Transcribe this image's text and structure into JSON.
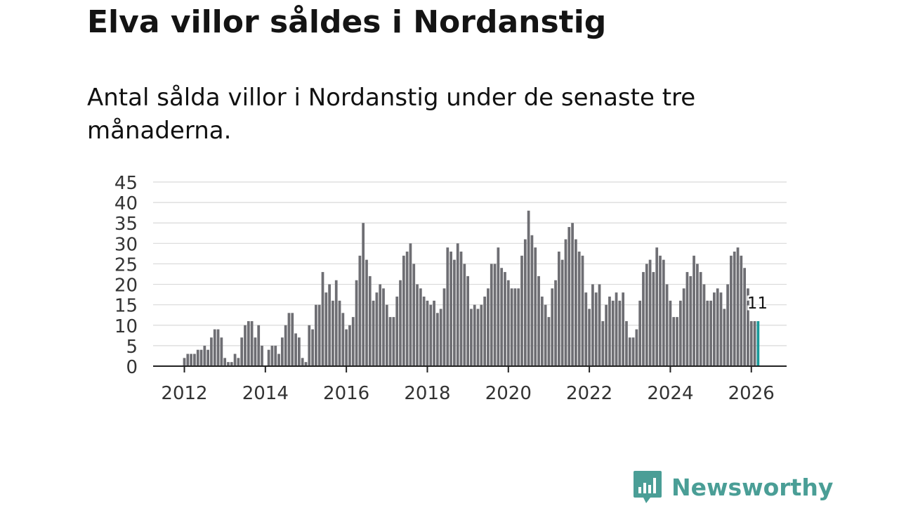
{
  "headline": "Elva villor såldes i Nordanstig",
  "subtitle": "Antal sålda villor i Nordanstig under de senaste tre månaderna.",
  "brand": {
    "name": "Newsworthy",
    "color": "#4a9e96"
  },
  "chart_data": {
    "type": "bar",
    "title": "Elva villor såldes i Nordanstig",
    "xlabel": "",
    "ylabel": "",
    "ylim": [
      0,
      45
    ],
    "yticks": [
      "0",
      "5",
      "10",
      "15",
      "20",
      "25",
      "30",
      "35",
      "40",
      "45"
    ],
    "xticks": [
      "2012",
      "2014",
      "2016",
      "2018",
      "2020",
      "2022",
      "2024",
      "2026"
    ],
    "x_start": {
      "year": 2012,
      "month": 1
    },
    "grid": true,
    "bar_color": "#6e6e73",
    "highlight_color": "#1a9a9a",
    "highlight_label": "11",
    "values": [
      2,
      3,
      3,
      3,
      4,
      4,
      5,
      4,
      7,
      9,
      9,
      7,
      2,
      1,
      1,
      3,
      2,
      7,
      10,
      11,
      11,
      7,
      10,
      5,
      0,
      4,
      5,
      5,
      3,
      7,
      10,
      13,
      13,
      8,
      7,
      2,
      1,
      10,
      9,
      15,
      15,
      23,
      18,
      20,
      16,
      21,
      16,
      13,
      9,
      10,
      12,
      21,
      27,
      35,
      26,
      22,
      16,
      18,
      20,
      19,
      15,
      12,
      12,
      17,
      21,
      27,
      28,
      30,
      25,
      20,
      19,
      17,
      16,
      15,
      16,
      13,
      14,
      19,
      29,
      28,
      26,
      30,
      28,
      25,
      22,
      14,
      15,
      14,
      15,
      17,
      19,
      25,
      25,
      29,
      24,
      23,
      21,
      19,
      19,
      19,
      27,
      31,
      38,
      32,
      29,
      22,
      17,
      15,
      12,
      19,
      21,
      28,
      26,
      31,
      34,
      35,
      31,
      28,
      27,
      18,
      14,
      20,
      18,
      20,
      11,
      15,
      17,
      16,
      18,
      16,
      18,
      11,
      7,
      7,
      9,
      16,
      23,
      25,
      26,
      23,
      29,
      27,
      26,
      20,
      16,
      12,
      12,
      16,
      19,
      23,
      22,
      27,
      25,
      23,
      20,
      16,
      16,
      18,
      19,
      18,
      14,
      20,
      27,
      28,
      29,
      27,
      24,
      19,
      11,
      11,
      11
    ]
  }
}
